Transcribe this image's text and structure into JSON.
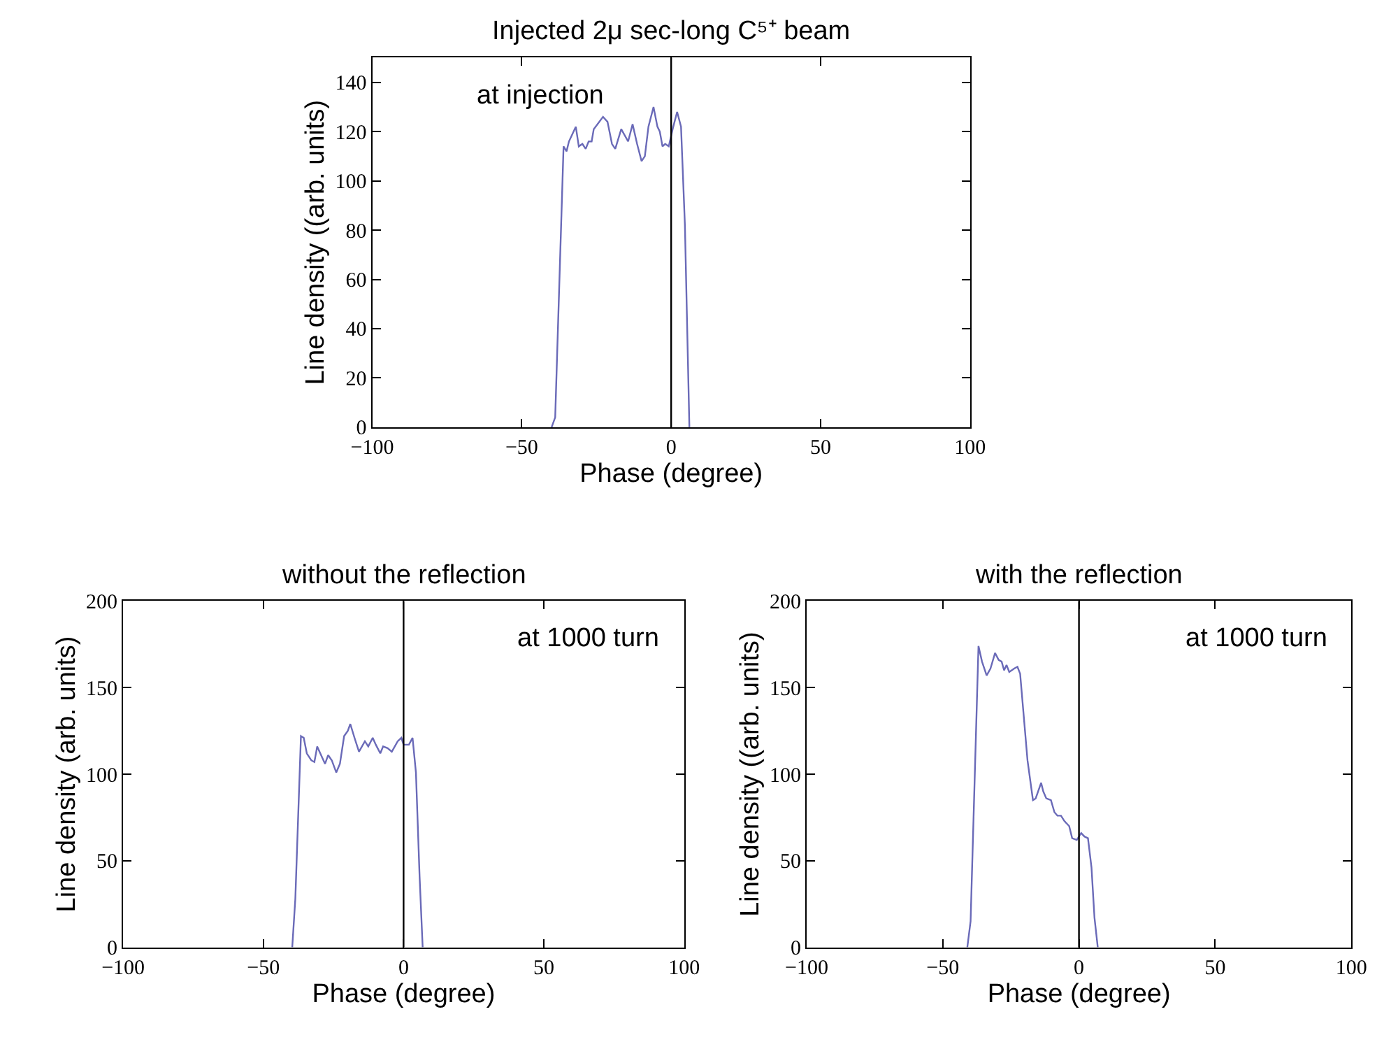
{
  "chart_data": [
    {
      "type": "line",
      "title": "Injected 2μ sec-long C⁵⁺ beam",
      "xlabel": "Phase (degree)",
      "ylabel": "Line density ((arb. units)",
      "annotations": [
        "at injection"
      ],
      "series": [
        {
          "color": "#6a6ab8",
          "x": [
            -40,
            -38.8,
            -36.0,
            -35.0,
            -34.2,
            -31.9,
            -30.9,
            -29.7,
            -28.6,
            -27.6,
            -26.6,
            -25.9,
            -22.8,
            -21.3,
            -19.8,
            -18.7,
            -16.7,
            -14.4,
            -12.9,
            -11.4,
            -9.9,
            -8.8,
            -7.6,
            -5.9,
            -4.6,
            -3.8,
            -2.9,
            -2.0,
            -0.8,
            0.5,
            2.0,
            3.3,
            4.6,
            6.1
          ],
          "values": [
            0,
            4,
            114,
            112,
            116,
            122,
            114,
            115,
            113,
            116,
            116,
            121,
            126,
            124,
            115,
            113,
            121,
            116,
            123,
            115,
            108,
            110,
            122,
            130,
            122,
            120,
            114,
            115,
            114,
            121,
            128,
            122,
            82,
            0
          ]
        }
      ],
      "xlim": [
        -100,
        100
      ],
      "xticks": [
        -100,
        -50,
        0,
        50,
        100
      ],
      "ylim": [
        0,
        150
      ],
      "yticks": [
        0,
        20,
        40,
        60,
        80,
        100,
        120,
        140
      ],
      "marker": "none",
      "line_style": "solid",
      "ref_lines": [
        {
          "axis": "x",
          "value": 0,
          "color": "#000000"
        }
      ]
    },
    {
      "type": "line",
      "title": "without the reflection",
      "xlabel": "Phase (degree)",
      "ylabel": "Line density (arb. units)",
      "annotations": [
        "at 1000 turn"
      ],
      "series": [
        {
          "color": "#6a6ab8",
          "x": [
            -39.7,
            -38.6,
            -36.6,
            -35.6,
            -34.5,
            -32.9,
            -31.8,
            -30.8,
            -29.7,
            -28.0,
            -26.9,
            -25.6,
            -24.0,
            -22.7,
            -21.2,
            -19.9,
            -19.0,
            -17.5,
            -15.9,
            -13.8,
            -12.6,
            -11.0,
            -9.9,
            -8.3,
            -7.3,
            -5.7,
            -4.2,
            -2.1,
            -0.8,
            0,
            1.9,
            3.2,
            4.4,
            5.7,
            6.8
          ],
          "values": [
            0,
            28,
            122,
            121,
            112,
            108,
            107,
            116,
            112,
            106,
            111,
            108,
            101,
            106,
            122,
            125,
            129,
            121,
            113,
            119,
            116,
            121,
            117,
            112,
            116,
            115,
            113,
            119,
            121,
            117,
            117,
            121,
            101,
            41,
            0
          ]
        }
      ],
      "xlim": [
        -100,
        100
      ],
      "xticks": [
        -100,
        -50,
        0,
        50,
        100
      ],
      "ylim": [
        0,
        200
      ],
      "yticks": [
        0,
        50,
        100,
        150,
        200
      ],
      "marker": "none",
      "line_style": "solid",
      "ref_lines": [
        {
          "axis": "x",
          "value": 0,
          "color": "#000000"
        }
      ]
    },
    {
      "type": "line",
      "title": "with the reflection",
      "xlabel": "Phase (degree)",
      "ylabel": "Line density ((arb. units)",
      "annotations": [
        "at 1000 turn"
      ],
      "series": [
        {
          "color": "#6a6ab8",
          "x": [
            -41.0,
            -39.8,
            -36.9,
            -35.6,
            -33.9,
            -32.5,
            -30.8,
            -29.5,
            -28.4,
            -27.5,
            -26.6,
            -25.6,
            -23.8,
            -22.6,
            -21.6,
            -18.9,
            -16.9,
            -15.9,
            -13.9,
            -13.1,
            -12.0,
            -10.3,
            -9.0,
            -7.9,
            -6.6,
            -5.4,
            -3.6,
            -2.5,
            -0.8,
            0.8,
            2.0,
            3.3,
            4.6,
            5.7,
            6.9
          ],
          "values": [
            0,
            15,
            174,
            165,
            157,
            161,
            170,
            166,
            165,
            160,
            163,
            159,
            161,
            162,
            158,
            108,
            85,
            86,
            95,
            90,
            86,
            85,
            78,
            76,
            76,
            73,
            70,
            63,
            62,
            66,
            64,
            63,
            46,
            17,
            0
          ]
        }
      ],
      "xlim": [
        -100,
        100
      ],
      "xticks": [
        -100,
        -50,
        0,
        50,
        100
      ],
      "ylim": [
        0,
        200
      ],
      "yticks": [
        0,
        50,
        100,
        150,
        200
      ],
      "marker": "none",
      "line_style": "solid",
      "ref_lines": [
        {
          "axis": "x",
          "value": 0,
          "color": "#000000"
        }
      ]
    }
  ]
}
